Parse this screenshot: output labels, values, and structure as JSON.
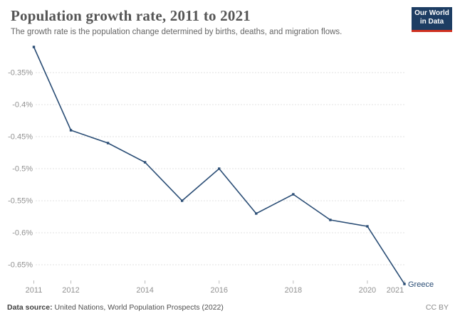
{
  "header": {
    "title": "Population growth rate, 2011 to 2021",
    "subtitle": "The growth rate is the population change determined by births, deaths, and migration flows.",
    "logo": {
      "line1": "Our World",
      "line2": "in Data",
      "bg_color": "#1d3d63",
      "accent_color": "#cf3020"
    }
  },
  "footer": {
    "data_source_label": "Data source:",
    "data_source_text": " United Nations, World Population Prospects (2022)",
    "license": "CC BY"
  },
  "chart_data": {
    "type": "line",
    "title": "Population growth rate, 2011 to 2021",
    "subtitle": "The growth rate is the population change determined by births, deaths, and migration flows.",
    "x": [
      2011,
      2012,
      2013,
      2014,
      2015,
      2016,
      2017,
      2018,
      2019,
      2020,
      2021
    ],
    "series": [
      {
        "name": "Greece",
        "color": "#2a4d75",
        "values": [
          -0.31,
          -0.44,
          -0.46,
          -0.49,
          -0.55,
          -0.5,
          -0.57,
          -0.54,
          -0.58,
          -0.59,
          -0.68
        ]
      }
    ],
    "xlabel": "",
    "ylabel": "",
    "xlim": [
      2011,
      2021
    ],
    "ylim": [
      -0.7,
      -0.3
    ],
    "yticks": [
      -0.35,
      -0.4,
      -0.45,
      -0.5,
      -0.55,
      -0.6,
      -0.65
    ],
    "ytick_labels": [
      "-0.35%",
      "-0.4%",
      "-0.45%",
      "-0.5%",
      "-0.55%",
      "-0.6%",
      "-0.65%"
    ],
    "xticks": [
      2011,
      2012,
      2014,
      2016,
      2018,
      2020,
      2021
    ],
    "xtick_labels": [
      "2011",
      "2012",
      "2014",
      "2016",
      "2018",
      "2020",
      "2021"
    ],
    "grid": "horizontal-dashed",
    "gridline_color": "#e2e2e2",
    "tick_label_color": "#919191",
    "legend": "end-of-line-label",
    "end_label": "Greece",
    "value_unit": "%"
  }
}
